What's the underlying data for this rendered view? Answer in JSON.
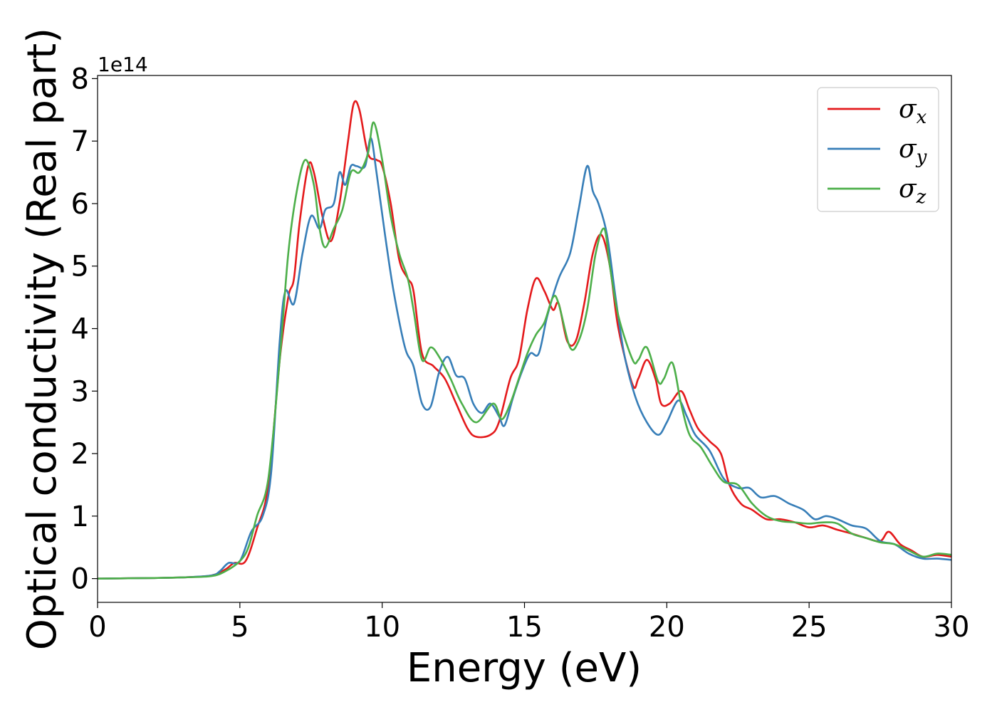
{
  "chart_data": {
    "type": "line",
    "xlabel": "Energy (eV)",
    "ylabel": "Optical conductivity (Real part)",
    "y_offset_label": "1e14",
    "y_scale": 100000000000000.0,
    "xlim": [
      0,
      30
    ],
    "ylim": [
      -0.38,
      8.05
    ],
    "x_ticks": [
      0,
      5,
      10,
      15,
      20,
      25,
      30
    ],
    "y_ticks": [
      0,
      1,
      2,
      3,
      4,
      5,
      6,
      7,
      8
    ],
    "grid": false,
    "legend_position": "top-right",
    "series": [
      {
        "name": "σ",
        "subscript": "x",
        "color": "#e41a1c",
        "points": [
          [
            0,
            0
          ],
          [
            2,
            0.01
          ],
          [
            3,
            0.02
          ],
          [
            4,
            0.05
          ],
          [
            4.5,
            0.15
          ],
          [
            4.8,
            0.25
          ],
          [
            5.2,
            0.28
          ],
          [
            5.6,
            0.8
          ],
          [
            6.0,
            1.5
          ],
          [
            6.4,
            3.5
          ],
          [
            6.7,
            4.5
          ],
          [
            6.9,
            4.8
          ],
          [
            7.1,
            5.7
          ],
          [
            7.4,
            6.6
          ],
          [
            7.6,
            6.5
          ],
          [
            7.9,
            5.8
          ],
          [
            8.2,
            5.4
          ],
          [
            8.5,
            6.0
          ],
          [
            8.8,
            7.0
          ],
          [
            9.0,
            7.6
          ],
          [
            9.2,
            7.5
          ],
          [
            9.5,
            6.8
          ],
          [
            9.8,
            6.7
          ],
          [
            10.0,
            6.6
          ],
          [
            10.3,
            6.0
          ],
          [
            10.6,
            5.1
          ],
          [
            10.9,
            4.8
          ],
          [
            11.1,
            4.6
          ],
          [
            11.4,
            3.6
          ],
          [
            11.8,
            3.4
          ],
          [
            12.2,
            3.2
          ],
          [
            12.6,
            2.8
          ],
          [
            13.0,
            2.4
          ],
          [
            13.3,
            2.27
          ],
          [
            13.8,
            2.3
          ],
          [
            14.1,
            2.5
          ],
          [
            14.5,
            3.2
          ],
          [
            14.8,
            3.5
          ],
          [
            15.1,
            4.3
          ],
          [
            15.4,
            4.8
          ],
          [
            15.7,
            4.6
          ],
          [
            16.0,
            4.3
          ],
          [
            16.2,
            4.4
          ],
          [
            16.5,
            3.8
          ],
          [
            16.8,
            3.8
          ],
          [
            17.1,
            4.4
          ],
          [
            17.4,
            5.2
          ],
          [
            17.7,
            5.5
          ],
          [
            18.0,
            5.0
          ],
          [
            18.3,
            4.0
          ],
          [
            18.8,
            3.1
          ],
          [
            19.0,
            3.2
          ],
          [
            19.3,
            3.5
          ],
          [
            19.6,
            3.2
          ],
          [
            19.8,
            2.8
          ],
          [
            20.1,
            2.8
          ],
          [
            20.5,
            3.0
          ],
          [
            20.8,
            2.7
          ],
          [
            21.1,
            2.4
          ],
          [
            21.5,
            2.2
          ],
          [
            21.9,
            2.0
          ],
          [
            22.2,
            1.5
          ],
          [
            22.6,
            1.2
          ],
          [
            23.0,
            1.1
          ],
          [
            23.5,
            0.95
          ],
          [
            24.0,
            0.95
          ],
          [
            24.5,
            0.9
          ],
          [
            25.0,
            0.82
          ],
          [
            25.5,
            0.85
          ],
          [
            26.0,
            0.78
          ],
          [
            26.5,
            0.72
          ],
          [
            27.0,
            0.65
          ],
          [
            27.5,
            0.6
          ],
          [
            27.8,
            0.75
          ],
          [
            28.2,
            0.55
          ],
          [
            28.6,
            0.45
          ],
          [
            29.0,
            0.35
          ],
          [
            29.5,
            0.38
          ],
          [
            30.0,
            0.35
          ]
        ]
      },
      {
        "name": "σ",
        "subscript": "y",
        "color": "#377eb8",
        "points": [
          [
            0,
            0
          ],
          [
            2,
            0.01
          ],
          [
            3,
            0.02
          ],
          [
            4,
            0.05
          ],
          [
            4.3,
            0.12
          ],
          [
            4.6,
            0.25
          ],
          [
            5.0,
            0.28
          ],
          [
            5.4,
            0.75
          ],
          [
            5.8,
            1.0
          ],
          [
            6.1,
            1.7
          ],
          [
            6.4,
            3.8
          ],
          [
            6.6,
            4.6
          ],
          [
            6.9,
            4.4
          ],
          [
            7.2,
            5.2
          ],
          [
            7.5,
            5.8
          ],
          [
            7.8,
            5.6
          ],
          [
            8.0,
            5.9
          ],
          [
            8.3,
            6.0
          ],
          [
            8.5,
            6.5
          ],
          [
            8.7,
            6.3
          ],
          [
            8.9,
            6.6
          ],
          [
            9.1,
            6.6
          ],
          [
            9.4,
            6.6
          ],
          [
            9.6,
            7.05
          ],
          [
            9.8,
            6.5
          ],
          [
            10.1,
            5.5
          ],
          [
            10.4,
            4.6
          ],
          [
            10.8,
            3.7
          ],
          [
            11.1,
            3.4
          ],
          [
            11.4,
            2.8
          ],
          [
            11.7,
            2.75
          ],
          [
            12.0,
            3.3
          ],
          [
            12.3,
            3.55
          ],
          [
            12.6,
            3.25
          ],
          [
            12.9,
            3.2
          ],
          [
            13.2,
            2.8
          ],
          [
            13.5,
            2.65
          ],
          [
            13.8,
            2.8
          ],
          [
            14.1,
            2.6
          ],
          [
            14.3,
            2.45
          ],
          [
            14.6,
            2.9
          ],
          [
            14.9,
            3.3
          ],
          [
            15.2,
            3.6
          ],
          [
            15.5,
            3.6
          ],
          [
            15.8,
            4.2
          ],
          [
            16.2,
            4.8
          ],
          [
            16.6,
            5.2
          ],
          [
            16.9,
            5.9
          ],
          [
            17.2,
            6.6
          ],
          [
            17.4,
            6.2
          ],
          [
            17.6,
            6.0
          ],
          [
            17.9,
            5.5
          ],
          [
            18.2,
            4.5
          ],
          [
            18.5,
            3.6
          ],
          [
            18.9,
            2.9
          ],
          [
            19.3,
            2.5
          ],
          [
            19.7,
            2.3
          ],
          [
            20.0,
            2.5
          ],
          [
            20.4,
            2.85
          ],
          [
            20.7,
            2.6
          ],
          [
            21.0,
            2.3
          ],
          [
            21.5,
            2.05
          ],
          [
            22.0,
            1.6
          ],
          [
            22.5,
            1.45
          ],
          [
            22.9,
            1.45
          ],
          [
            23.3,
            1.3
          ],
          [
            23.8,
            1.32
          ],
          [
            24.3,
            1.2
          ],
          [
            24.8,
            1.1
          ],
          [
            25.2,
            0.95
          ],
          [
            25.6,
            1.0
          ],
          [
            26.0,
            0.95
          ],
          [
            26.5,
            0.85
          ],
          [
            27.0,
            0.8
          ],
          [
            27.5,
            0.6
          ],
          [
            28.0,
            0.55
          ],
          [
            28.5,
            0.4
          ],
          [
            29.0,
            0.32
          ],
          [
            29.5,
            0.32
          ],
          [
            30.0,
            0.3
          ]
        ]
      },
      {
        "name": "σ",
        "subscript": "z",
        "color": "#4daf4a",
        "points": [
          [
            0,
            0
          ],
          [
            2,
            0.01
          ],
          [
            3,
            0.02
          ],
          [
            4,
            0.04
          ],
          [
            4.5,
            0.12
          ],
          [
            5.0,
            0.28
          ],
          [
            5.3,
            0.5
          ],
          [
            5.6,
            1.0
          ],
          [
            6.0,
            1.6
          ],
          [
            6.4,
            3.5
          ],
          [
            6.7,
            5.2
          ],
          [
            7.0,
            6.2
          ],
          [
            7.3,
            6.7
          ],
          [
            7.6,
            6.3
          ],
          [
            7.8,
            5.6
          ],
          [
            8.0,
            5.3
          ],
          [
            8.3,
            5.6
          ],
          [
            8.6,
            5.9
          ],
          [
            8.9,
            6.5
          ],
          [
            9.2,
            6.5
          ],
          [
            9.5,
            6.8
          ],
          [
            9.7,
            7.3
          ],
          [
            10.0,
            6.7
          ],
          [
            10.3,
            5.8
          ],
          [
            10.6,
            5.2
          ],
          [
            10.9,
            4.8
          ],
          [
            11.1,
            4.3
          ],
          [
            11.4,
            3.5
          ],
          [
            11.7,
            3.7
          ],
          [
            12.0,
            3.55
          ],
          [
            12.4,
            3.2
          ],
          [
            12.8,
            2.8
          ],
          [
            13.3,
            2.5
          ],
          [
            13.9,
            2.8
          ],
          [
            14.2,
            2.55
          ],
          [
            14.5,
            2.8
          ],
          [
            14.8,
            3.2
          ],
          [
            15.1,
            3.6
          ],
          [
            15.4,
            3.9
          ],
          [
            15.7,
            4.1
          ],
          [
            16.0,
            4.5
          ],
          [
            16.2,
            4.4
          ],
          [
            16.6,
            3.7
          ],
          [
            16.9,
            3.8
          ],
          [
            17.2,
            4.3
          ],
          [
            17.5,
            5.2
          ],
          [
            17.8,
            5.6
          ],
          [
            18.0,
            5.0
          ],
          [
            18.3,
            4.2
          ],
          [
            18.8,
            3.5
          ],
          [
            19.0,
            3.5
          ],
          [
            19.3,
            3.7
          ],
          [
            19.7,
            3.15
          ],
          [
            19.9,
            3.2
          ],
          [
            20.2,
            3.45
          ],
          [
            20.5,
            2.8
          ],
          [
            20.8,
            2.3
          ],
          [
            21.2,
            2.1
          ],
          [
            21.6,
            1.8
          ],
          [
            22.0,
            1.55
          ],
          [
            22.5,
            1.5
          ],
          [
            23.0,
            1.2
          ],
          [
            23.5,
            1.0
          ],
          [
            24.0,
            0.92
          ],
          [
            24.5,
            0.9
          ],
          [
            25.0,
            0.88
          ],
          [
            25.5,
            0.9
          ],
          [
            26.0,
            0.88
          ],
          [
            26.5,
            0.72
          ],
          [
            27.0,
            0.65
          ],
          [
            27.5,
            0.58
          ],
          [
            28.0,
            0.55
          ],
          [
            28.5,
            0.45
          ],
          [
            29.0,
            0.35
          ],
          [
            29.5,
            0.4
          ],
          [
            30.0,
            0.38
          ]
        ]
      }
    ]
  }
}
